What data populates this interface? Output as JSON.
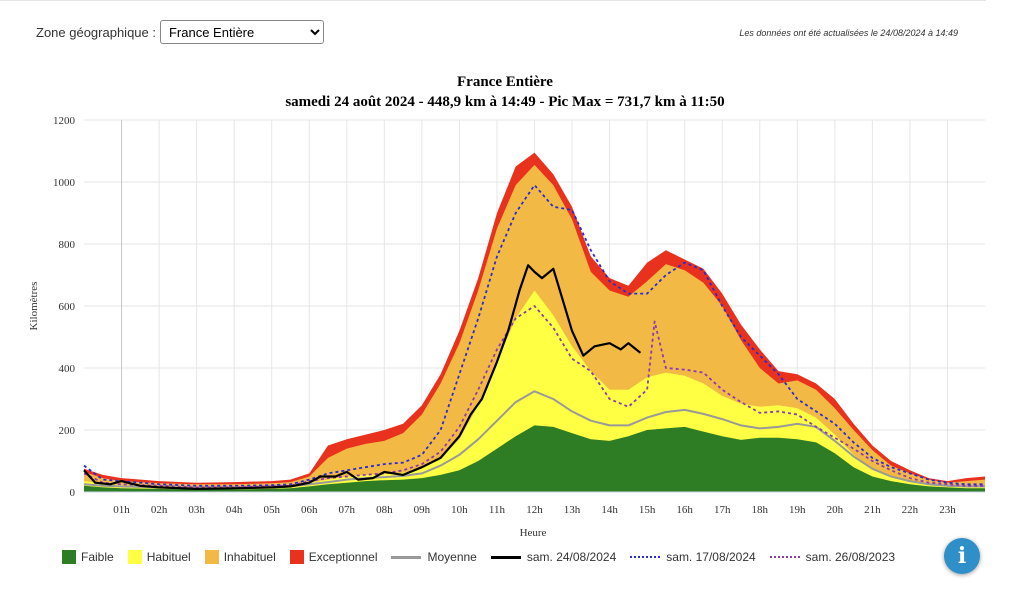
{
  "header": {
    "zone_label": "Zone géographique :",
    "zone_selected": "France Entière",
    "updated_text": "Les données ont été actualisées le 24/08/2024 à 14:49"
  },
  "chart_data": {
    "type": "area",
    "title": "France Entière",
    "subtitle": "samedi 24 août 2024 - 448,9 km à 14:49 - Pic Max = 731,7 km à 11:50",
    "xlabel": "Heure",
    "ylabel": "Kilomètres",
    "ylim": [
      0,
      1200
    ],
    "xlim": [
      0,
      24
    ],
    "yticks": [
      0,
      200,
      400,
      600,
      800,
      1000,
      1200
    ],
    "xticks": [
      "01h",
      "02h",
      "03h",
      "04h",
      "05h",
      "06h",
      "07h",
      "08h",
      "09h",
      "10h",
      "11h",
      "12h",
      "13h",
      "14h",
      "15h",
      "16h",
      "17h",
      "18h",
      "19h",
      "20h",
      "21h",
      "22h",
      "23h"
    ],
    "grid": true,
    "legend_position": "bottom",
    "colors": {
      "Faible": "#2e7d24",
      "Habituel": "#ffff44",
      "Inhabituel": "#f2b944",
      "Exceptionnel": "#e8321e",
      "Moyenne": "#999999",
      "sam. 24/08/2024": "#000000",
      "sam. 17/08/2024": "#2a2ad6",
      "sam. 26/08/2023": "#8e3ab0"
    },
    "bands": {
      "x": [
        0,
        0.5,
        1,
        2,
        3,
        4,
        5,
        5.5,
        6,
        6.5,
        7,
        7.5,
        8,
        8.5,
        9,
        9.5,
        10,
        10.5,
        11,
        11.5,
        12,
        12.5,
        13,
        13.5,
        14,
        14.5,
        15,
        15.5,
        16,
        16.5,
        17,
        17.5,
        18,
        18.5,
        19,
        19.5,
        20,
        20.5,
        21,
        21.5,
        22,
        22.5,
        23,
        23.5,
        24
      ],
      "Faible": [
        20,
        15,
        12,
        10,
        8,
        8,
        10,
        12,
        18,
        25,
        30,
        35,
        38,
        40,
        45,
        55,
        70,
        100,
        140,
        180,
        215,
        210,
        190,
        170,
        165,
        180,
        200,
        205,
        210,
        195,
        180,
        168,
        175,
        175,
        170,
        160,
        125,
        80,
        50,
        35,
        25,
        18,
        15,
        12,
        12
      ],
      "Habituel": [
        35,
        28,
        22,
        18,
        15,
        15,
        18,
        22,
        30,
        40,
        50,
        55,
        58,
        62,
        75,
        110,
        170,
        280,
        420,
        560,
        650,
        570,
        470,
        390,
        330,
        330,
        370,
        385,
        375,
        350,
        310,
        285,
        275,
        280,
        270,
        240,
        185,
        120,
        75,
        50,
        35,
        25,
        20,
        18,
        18
      ],
      "Inhabituel": [
        65,
        45,
        35,
        28,
        25,
        25,
        28,
        32,
        50,
        110,
        140,
        155,
        165,
        190,
        250,
        350,
        480,
        650,
        850,
        990,
        1055,
        990,
        880,
        710,
        650,
        630,
        680,
        735,
        715,
        675,
        600,
        490,
        400,
        350,
        360,
        330,
        270,
        200,
        135,
        85,
        60,
        40,
        30,
        35,
        40
      ],
      "Exceptionnel": [
        75,
        55,
        45,
        35,
        30,
        32,
        35,
        40,
        60,
        150,
        170,
        185,
        200,
        220,
        280,
        380,
        520,
        690,
        900,
        1050,
        1095,
        1025,
        920,
        760,
        690,
        665,
        740,
        780,
        750,
        720,
        640,
        540,
        460,
        390,
        380,
        350,
        300,
        220,
        150,
        100,
        70,
        45,
        35,
        45,
        50
      ]
    },
    "series": [
      {
        "name": "Moyenne",
        "x": [
          0,
          0.5,
          1,
          2,
          3,
          4,
          5,
          5.5,
          6,
          6.5,
          7,
          7.5,
          8,
          8.5,
          9,
          9.5,
          10,
          10.5,
          11,
          11.5,
          12,
          12.5,
          13,
          13.5,
          14,
          14.5,
          15,
          15.5,
          16,
          16.5,
          17,
          17.5,
          18,
          18.5,
          19,
          19.5,
          20,
          20.5,
          21,
          21.5,
          22,
          22.5,
          23,
          23.5,
          24
        ],
        "values": [
          25,
          20,
          18,
          15,
          12,
          12,
          15,
          18,
          25,
          32,
          40,
          45,
          48,
          52,
          60,
          85,
          120,
          170,
          230,
          290,
          325,
          300,
          260,
          230,
          215,
          215,
          240,
          258,
          265,
          252,
          235,
          215,
          205,
          210,
          220,
          210,
          165,
          115,
          75,
          50,
          35,
          25,
          20,
          18,
          18
        ]
      },
      {
        "name": "sam. 24/08/2024",
        "x": [
          0,
          0.3,
          0.7,
          1,
          1.5,
          2,
          3,
          4,
          5,
          5.5,
          6,
          6.3,
          6.7,
          7,
          7.3,
          7.7,
          8,
          8.5,
          9,
          9.5,
          10,
          10.3,
          10.6,
          11,
          11.3,
          11.6,
          11.83,
          12,
          12.2,
          12.5,
          12.7,
          13,
          13.3,
          13.6,
          14,
          14.3,
          14.5,
          14.82
        ],
        "values": [
          70,
          30,
          25,
          35,
          20,
          15,
          10,
          12,
          15,
          18,
          30,
          50,
          50,
          65,
          40,
          45,
          65,
          55,
          80,
          110,
          180,
          250,
          300,
          420,
          520,
          650,
          731.7,
          710,
          690,
          720,
          640,
          520,
          440,
          470,
          480,
          460,
          480,
          448.9
        ]
      },
      {
        "name": "sam. 17/08/2024",
        "x": [
          0,
          0.5,
          1,
          2,
          3,
          4,
          5,
          5.5,
          6,
          6.5,
          7,
          7.5,
          8,
          8.5,
          9,
          9.5,
          10,
          10.5,
          11,
          11.5,
          12,
          12.5,
          13,
          13.5,
          14,
          14.5,
          15,
          15.5,
          16,
          16.5,
          17,
          17.5,
          18,
          18.5,
          19,
          19.5,
          20,
          20.5,
          21,
          21.5,
          22,
          22.5,
          23,
          23.5,
          24
        ],
        "values": [
          85,
          40,
          35,
          25,
          20,
          20,
          22,
          25,
          40,
          60,
          70,
          80,
          90,
          95,
          120,
          200,
          380,
          560,
          760,
          900,
          990,
          920,
          910,
          780,
          680,
          640,
          640,
          700,
          740,
          715,
          600,
          500,
          440,
          380,
          300,
          260,
          220,
          160,
          110,
          80,
          60,
          40,
          30,
          25,
          25
        ]
      },
      {
        "name": "sam. 26/08/2023",
        "x": [
          0,
          0.5,
          1,
          2,
          3,
          4,
          5,
          5.5,
          6,
          6.5,
          7,
          7.5,
          8,
          8.5,
          9,
          9.5,
          10,
          10.5,
          11,
          11.5,
          12,
          12.5,
          13,
          13.5,
          14,
          14.5,
          15,
          15.2,
          15.5,
          16,
          16.5,
          17,
          17.5,
          18,
          18.5,
          19,
          19.5,
          20,
          20.5,
          21,
          21.5,
          22,
          22.5,
          23,
          23.5,
          24
        ],
        "values": [
          60,
          30,
          25,
          20,
          15,
          15,
          18,
          20,
          35,
          45,
          50,
          55,
          60,
          70,
          90,
          130,
          210,
          330,
          460,
          560,
          600,
          530,
          430,
          390,
          300,
          275,
          330,
          550,
          400,
          395,
          385,
          330,
          290,
          255,
          260,
          250,
          210,
          175,
          140,
          100,
          70,
          45,
          30,
          25,
          20,
          20
        ]
      }
    ]
  },
  "legend": [
    {
      "label": "Faible",
      "kind": "box",
      "color": "#2e7d24"
    },
    {
      "label": "Habituel",
      "kind": "box",
      "color": "#ffff44"
    },
    {
      "label": "Inhabituel",
      "kind": "box",
      "color": "#f2b944"
    },
    {
      "label": "Exceptionnel",
      "kind": "box",
      "color": "#e8321e"
    },
    {
      "label": "Moyenne",
      "kind": "line",
      "color": "#999999",
      "style": "solid"
    },
    {
      "label": "sam. 24/08/2024",
      "kind": "line",
      "color": "#000000",
      "style": "solid"
    },
    {
      "label": "sam. 17/08/2024",
      "kind": "line",
      "color": "#2a2ad6",
      "style": "dotted"
    },
    {
      "label": "sam. 26/08/2023",
      "kind": "line",
      "color": "#8e3ab0",
      "style": "dotted"
    }
  ],
  "info_button": {
    "icon": "info-icon",
    "glyph": "i"
  }
}
